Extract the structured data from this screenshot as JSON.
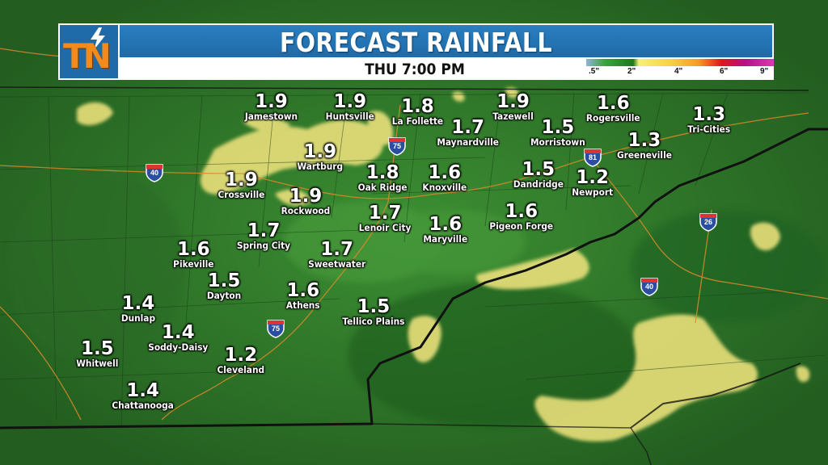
{
  "header": {
    "title": "FORECAST RAINFALL",
    "subtitle": "THU 7:00 PM",
    "logo_text": "TN"
  },
  "scale": {
    "ticks": [
      ".5\"",
      "2\"",
      "4\"",
      "6\"",
      "9\""
    ],
    "colors": [
      "#8fb3d9",
      "#3aa33a",
      "#1c7a1c",
      "#f5f07a",
      "#f29a2a",
      "#e3161c",
      "#b0128a",
      "#d83ab0"
    ]
  },
  "cities": [
    {
      "name": "Jamestown",
      "value": "1.9"
    },
    {
      "name": "Huntsville",
      "value": "1.9"
    },
    {
      "name": "La Follette",
      "value": "1.8"
    },
    {
      "name": "Tazewell",
      "value": "1.9"
    },
    {
      "name": "Rogersville",
      "value": "1.6"
    },
    {
      "name": "Tri-Cities",
      "value": "1.3"
    },
    {
      "name": "Maynardville",
      "value": "1.7"
    },
    {
      "name": "Morristown",
      "value": "1.5"
    },
    {
      "name": "Greeneville",
      "value": "1.3"
    },
    {
      "name": "Wartburg",
      "value": "1.9"
    },
    {
      "name": "Oak Ridge",
      "value": "1.8"
    },
    {
      "name": "Knoxville",
      "value": "1.6"
    },
    {
      "name": "Dandridge",
      "value": "1.5"
    },
    {
      "name": "Newport",
      "value": "1.2"
    },
    {
      "name": "Crossville",
      "value": "1.9"
    },
    {
      "name": "Rockwood",
      "value": "1.9"
    },
    {
      "name": "Lenoir City",
      "value": "1.7"
    },
    {
      "name": "Maryville",
      "value": "1.6"
    },
    {
      "name": "Pigeon Forge",
      "value": "1.6"
    },
    {
      "name": "Spring City",
      "value": "1.7"
    },
    {
      "name": "Pikeville",
      "value": "1.6"
    },
    {
      "name": "Sweetwater",
      "value": "1.7"
    },
    {
      "name": "Dayton",
      "value": "1.5"
    },
    {
      "name": "Athens",
      "value": "1.6"
    },
    {
      "name": "Dunlap",
      "value": "1.4"
    },
    {
      "name": "Tellico Plains",
      "value": "1.5"
    },
    {
      "name": "Soddy-Daisy",
      "value": "1.4"
    },
    {
      "name": "Whitwell",
      "value": "1.5"
    },
    {
      "name": "Cleveland",
      "value": "1.2"
    },
    {
      "name": "Chattanooga",
      "value": "1.4"
    }
  ],
  "interstates": [
    "40",
    "75",
    "81",
    "26",
    "40"
  ],
  "colors": {
    "rain_green": "#2f7a2a",
    "rain_yellow": "#e9e07a",
    "header_blue": "#1f6aa8",
    "logo_orange": "#f28a1e"
  }
}
